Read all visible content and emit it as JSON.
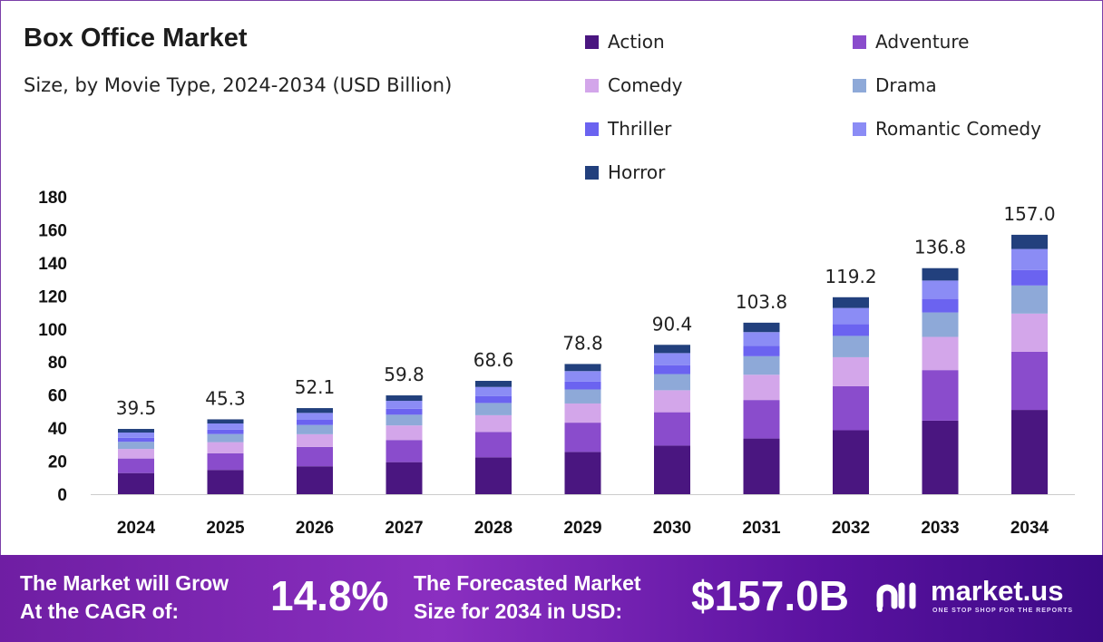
{
  "chart_data": {
    "type": "bar",
    "stacked": true,
    "title": "Box Office Market",
    "subtitle": "Size, by Movie Type, 2024-2034 (USD Billion)",
    "categories": [
      "2024",
      "2025",
      "2026",
      "2027",
      "2028",
      "2029",
      "2030",
      "2031",
      "2032",
      "2033",
      "2034"
    ],
    "totals": [
      "39.5",
      "45.3",
      "52.1",
      "59.8",
      "68.6",
      "78.8",
      "90.4",
      "103.8",
      "119.2",
      "136.8",
      "157.0"
    ],
    "ylim": [
      0,
      180
    ],
    "yticks": [
      "0",
      "20",
      "40",
      "60",
      "80",
      "100",
      "120",
      "140",
      "160",
      "180"
    ],
    "grid": false,
    "legend": "top-right",
    "series": [
      {
        "name": "Action",
        "color": "#4a1680",
        "values": [
          12.8,
          14.7,
          16.9,
          19.4,
          22.3,
          25.6,
          29.4,
          33.7,
          38.7,
          44.5,
          51.0
        ]
      },
      {
        "name": "Adventure",
        "color": "#8a4ccc",
        "values": [
          8.8,
          10.1,
          11.7,
          13.4,
          15.4,
          17.7,
          20.2,
          23.3,
          26.7,
          30.6,
          35.2
        ]
      },
      {
        "name": "Comedy",
        "color": "#d3a6ea",
        "values": [
          5.8,
          6.7,
          7.7,
          8.8,
          10.1,
          11.6,
          13.3,
          15.3,
          17.5,
          20.1,
          23.1
        ]
      },
      {
        "name": "Drama",
        "color": "#8ea9d8",
        "values": [
          4.3,
          4.9,
          5.6,
          6.5,
          7.4,
          8.5,
          9.8,
          11.2,
          12.9,
          14.8,
          17.0
        ]
      },
      {
        "name": "Thriller",
        "color": "#6b63f0",
        "values": [
          2.4,
          2.7,
          3.1,
          3.6,
          4.1,
          4.7,
          5.4,
          6.2,
          7.2,
          8.2,
          9.4
        ]
      },
      {
        "name": "Romantic Comedy",
        "color": "#8b8cf5",
        "values": [
          3.2,
          3.7,
          4.2,
          4.8,
          5.6,
          6.4,
          7.3,
          8.4,
          9.7,
          11.1,
          12.7
        ]
      },
      {
        "name": "Horror",
        "color": "#22407d",
        "values": [
          2.2,
          2.5,
          2.9,
          3.3,
          3.7,
          4.3,
          5.0,
          5.7,
          6.5,
          7.5,
          8.6
        ]
      }
    ]
  },
  "footer": {
    "cagr_label_1": "The Market will Grow",
    "cagr_label_2": "At the CAGR of:",
    "cagr": "14.8%",
    "size_label_1": "The Forecasted Market",
    "size_label_2": "Size for 2034 in USD:",
    "size": "$157.0B",
    "logo": "market.us",
    "logo_tagline": "ONE STOP SHOP FOR THE REPORTS"
  }
}
